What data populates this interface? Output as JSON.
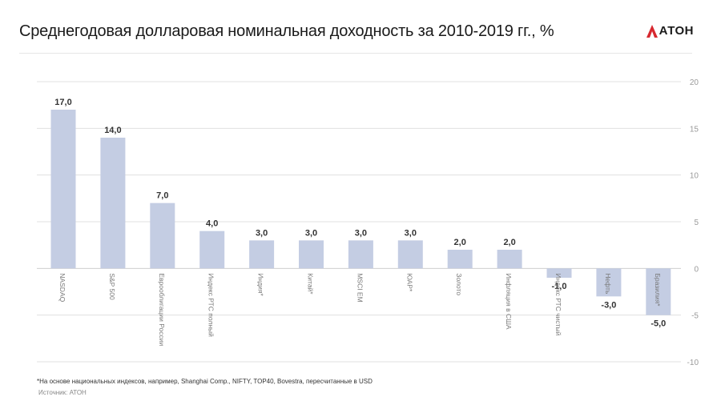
{
  "title": "Среднегодовая долларовая номинальная доходность за 2010-2019 гг., %",
  "logo": {
    "text": "АТОН",
    "accent_color": "#d7282f"
  },
  "footnote": "*На основе национальных индексов, например, Shanghai Comp., NIFTY, TOP40, Bovestra, пересчитанные в USD",
  "source": "Источник: АТОН",
  "chart_data": {
    "type": "bar",
    "categories": [
      "NASDAQ",
      "S&P 500",
      "Еврооблигации России",
      "Индекс РТС полный",
      "Индия*",
      "Китай*",
      "MSCI EM",
      "ЮАР*",
      "Золото",
      "Инфляция в США",
      "Индекс РТС чистый",
      "Нефть",
      "Бразилия*"
    ],
    "values": [
      17.0,
      14.0,
      7.0,
      4.0,
      3.0,
      3.0,
      3.0,
      3.0,
      2.0,
      2.0,
      -1.0,
      -3.0,
      -5.0
    ],
    "value_labels": [
      "17,0",
      "14,0",
      "7,0",
      "4,0",
      "3,0",
      "3,0",
      "3,0",
      "3,0",
      "2,0",
      "2,0",
      "-1,0",
      "-3,0",
      "-5,0"
    ],
    "ylim": [
      -10,
      20
    ],
    "yticks": [
      -10,
      -5,
      0,
      5,
      10,
      15,
      20
    ],
    "y_axis_position": "right",
    "grid": true,
    "bar_color": "#c4cde3",
    "grid_color": "#e0e0e0",
    "label_color": "#333333",
    "tick_color": "#9a9a9a"
  }
}
